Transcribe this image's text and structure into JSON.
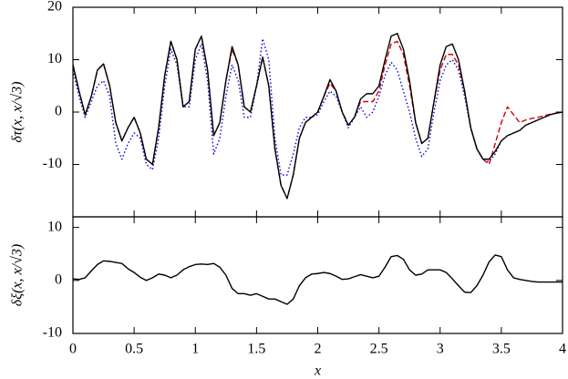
{
  "chart_data": [
    {
      "type": "line",
      "ylabel": "δτ(x, x/√3)",
      "xlim": [
        0,
        4
      ],
      "xticks": [
        0,
        0.5,
        1,
        1.5,
        2,
        2.5,
        3,
        3.5,
        4
      ],
      "ylim": [
        -20,
        20
      ],
      "yticks": [
        -10,
        0,
        10,
        20
      ],
      "x": [
        0,
        0.05,
        0.1,
        0.15,
        0.2,
        0.25,
        0.3,
        0.35,
        0.4,
        0.45,
        0.5,
        0.55,
        0.6,
        0.65,
        0.7,
        0.75,
        0.8,
        0.85,
        0.9,
        0.95,
        1,
        1.05,
        1.1,
        1.15,
        1.2,
        1.25,
        1.3,
        1.35,
        1.4,
        1.45,
        1.5,
        1.55,
        1.6,
        1.65,
        1.7,
        1.75,
        1.8,
        1.85,
        1.9,
        1.95,
        2,
        2.05,
        2.1,
        2.15,
        2.2,
        2.25,
        2.3,
        2.35,
        2.4,
        2.45,
        2.5,
        2.55,
        2.6,
        2.65,
        2.7,
        2.75,
        2.8,
        2.85,
        2.9,
        2.95,
        3,
        3.05,
        3.1,
        3.15,
        3.2,
        3.25,
        3.3,
        3.35,
        3.4,
        3.45,
        3.5,
        3.55,
        3.6,
        3.65,
        3.7,
        3.75,
        3.8,
        3.85,
        3.9,
        3.95,
        4
      ],
      "series": [
        {
          "color": "#000000",
          "style": "solid",
          "values": [
            9,
            4,
            -0.5,
            3,
            8,
            9.2,
            5,
            -2,
            -5.5,
            -3,
            -1,
            -4,
            -9,
            -10,
            -3,
            7,
            13.5,
            10,
            1,
            2,
            12,
            14.5,
            8,
            -4.5,
            -2,
            6,
            12.5,
            9,
            1,
            0,
            5,
            10.5,
            5,
            -7,
            -14,
            -16.5,
            -12,
            -5,
            -2,
            -1,
            0,
            3,
            6.2,
            4,
            0,
            -2.5,
            -1,
            2.5,
            3.5,
            3.5,
            5,
            10,
            14.5,
            15,
            12,
            6,
            -2,
            -6,
            -5,
            2,
            9,
            12.5,
            13,
            10,
            4,
            -3,
            -7,
            -9,
            -9,
            -7.5,
            -5.5,
            -4.5,
            -4,
            -3.5,
            -2.5,
            -2,
            -1.5,
            -1,
            -0.5,
            -0.2,
            0
          ]
        },
        {
          "color": "#d40000",
          "style": "dashed",
          "values": [
            9,
            4,
            -0.5,
            3,
            8,
            9.2,
            5,
            -2,
            -5.5,
            -3,
            -1,
            -4,
            -9,
            -10,
            -3,
            7,
            13.5,
            10,
            1,
            2,
            12,
            14.5,
            8,
            -4.5,
            -2,
            6,
            12,
            9,
            1,
            0,
            5,
            10.5,
            5,
            -7,
            -14,
            -16.5,
            -12,
            -5,
            -2,
            -1,
            0,
            3,
            5.5,
            4,
            0,
            -2.5,
            -1,
            2,
            2,
            2,
            4,
            9,
            13,
            13.5,
            11,
            5,
            -2,
            -6,
            -5,
            2,
            8,
            11,
            11,
            9,
            4,
            -3,
            -7,
            -9,
            -10,
            -6,
            -2,
            1,
            -0.5,
            -2,
            -1.5,
            -1.2,
            -1,
            -0.7,
            -0.4,
            -0.2,
            0
          ]
        },
        {
          "color": "#0000dd",
          "style": "dotted",
          "values": [
            8,
            3,
            -1,
            2,
            5,
            6,
            3,
            -6,
            -9,
            -6,
            -4,
            -5,
            -10,
            -11,
            -5,
            5,
            12,
            9,
            1,
            1,
            10,
            13,
            6,
            -8,
            -5,
            3,
            9,
            6,
            -1,
            -1,
            5,
            14,
            10,
            -5,
            -12,
            -12,
            -8,
            -3,
            -1,
            -1,
            -0.5,
            2,
            4,
            3,
            0,
            -3,
            -1,
            1,
            -1,
            0,
            3,
            7,
            9.5,
            8,
            4,
            0,
            -5,
            -8.5,
            -7,
            0,
            6,
            9,
            10,
            8,
            3,
            -3,
            -7,
            -9,
            -9.5,
            -8,
            -5.5,
            -4.5,
            -4,
            -3.5,
            -2.5,
            -2,
            -1.5,
            -1,
            -0.5,
            -0.2,
            0
          ]
        }
      ]
    },
    {
      "type": "line",
      "ylabel": "δξ(x, x/√3)",
      "xlabel": "x",
      "xlim": [
        0,
        4
      ],
      "xticks": [
        0,
        0.5,
        1,
        1.5,
        2,
        2.5,
        3,
        3.5,
        4
      ],
      "ylim": [
        -10,
        12
      ],
      "yticks": [
        -10,
        0,
        10
      ],
      "x": [
        0,
        0.05,
        0.1,
        0.15,
        0.2,
        0.25,
        0.3,
        0.35,
        0.4,
        0.45,
        0.5,
        0.55,
        0.6,
        0.65,
        0.7,
        0.75,
        0.8,
        0.85,
        0.9,
        0.95,
        1,
        1.05,
        1.1,
        1.15,
        1.2,
        1.25,
        1.3,
        1.35,
        1.4,
        1.45,
        1.5,
        1.55,
        1.6,
        1.65,
        1.7,
        1.75,
        1.8,
        1.85,
        1.9,
        1.95,
        2,
        2.05,
        2.1,
        2.15,
        2.2,
        2.25,
        2.3,
        2.35,
        2.4,
        2.45,
        2.5,
        2.55,
        2.6,
        2.65,
        2.7,
        2.75,
        2.8,
        2.85,
        2.9,
        2.95,
        3,
        3.05,
        3.1,
        3.15,
        3.2,
        3.25,
        3.3,
        3.35,
        3.4,
        3.45,
        3.5,
        3.55,
        3.6,
        3.65,
        3.7,
        3.75,
        3.8,
        3.85,
        3.9,
        3.95,
        4
      ],
      "series": [
        {
          "color": "#000000",
          "style": "solid",
          "values": [
            0.3,
            0.2,
            0.5,
            1.8,
            3,
            3.7,
            3.6,
            3.4,
            3.2,
            2.2,
            1.5,
            0.6,
            0,
            0.5,
            1.2,
            1,
            0.5,
            1,
            2,
            2.6,
            3,
            3.1,
            3,
            3.2,
            2.5,
            1,
            -1.5,
            -2.5,
            -2.5,
            -2.8,
            -2.5,
            -3,
            -3.5,
            -3.5,
            -4,
            -4.5,
            -3.5,
            -1,
            0.5,
            1.2,
            1.3,
            1.5,
            1.3,
            0.8,
            0.2,
            0.3,
            0.7,
            1.1,
            0.8,
            0.5,
            0.8,
            2.5,
            4.5,
            4.7,
            4,
            2,
            1,
            1.2,
            2,
            2,
            2,
            1.5,
            0.3,
            -1,
            -2.2,
            -2.3,
            -1,
            1,
            3.5,
            4.8,
            4.5,
            2,
            0.5,
            0.2,
            0,
            -0.2,
            -0.3,
            -0.3,
            -0.3,
            -0.3,
            -0.3
          ]
        }
      ]
    }
  ]
}
